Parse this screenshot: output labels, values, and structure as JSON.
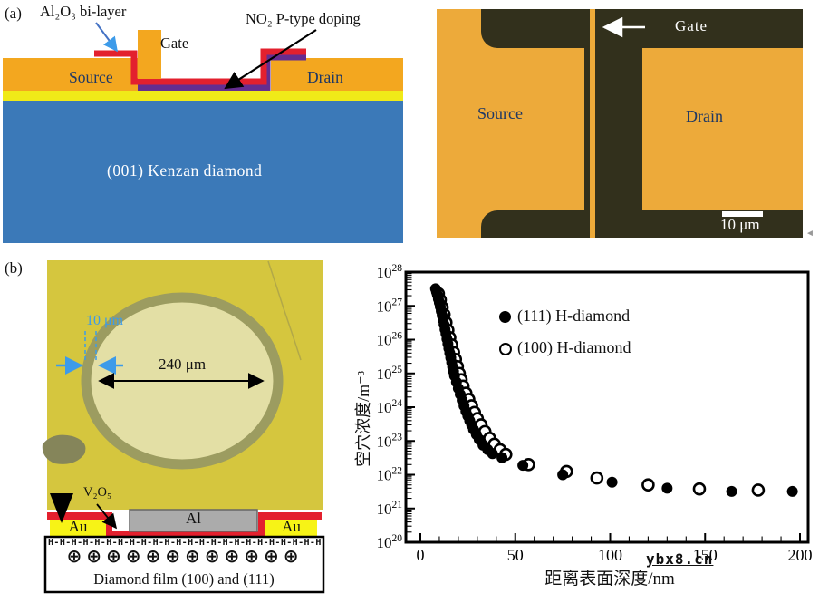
{
  "colors": {
    "metal_orange": "#F3A71F",
    "oxide_red": "#E3202E",
    "oxide_purple": "#652D90",
    "channel_yellow": "#F0EA18",
    "substrate_blue": "#3B79B8",
    "pad_gold": "#EDAA3A",
    "micro_dark": "#32301C",
    "film_yellow": "#D5C63E",
    "ring_gray": "#9C9C60",
    "ring_inner": "#E3DFA5",
    "blob_gray": "#85855A",
    "crack_olive": "#B2A848",
    "au_yellow": "#F7F316",
    "al_gray": "#ABABAB",
    "arrow_blue": "#3D9BE9",
    "label_navy": "#1F3864"
  },
  "panel_a": {
    "label": "(a)",
    "schematic": {
      "al2o3_label": "Al₂O₃ bi-layer",
      "no2_label": "NO₂ P-type doping",
      "gate_label": "Gate",
      "source_label": "Source",
      "drain_label": "Drain",
      "substrate_label": "(001) Kenzan diamond"
    },
    "micrograph": {
      "gate_label": "Gate",
      "source_label": "Source",
      "drain_label": "Drain",
      "scale_bar_label": "10 μm"
    }
  },
  "panel_b": {
    "label": "(b)",
    "micrograph": {
      "ring_width_label": "10 μm",
      "diameter_label": "240 μm"
    },
    "schematic": {
      "v2o5_label": "V₂O₅",
      "al_label": "Al",
      "au_left_label": "Au",
      "au_right_label": "Au",
      "h_layer_row": "H-H-H-H-H-H-H-H-H-H-H-H-H-H-H-H-H-H-H-H-H-H-H-H-H",
      "holes_row": "⊕⊕⊕⊕⊕⊕⊕⊕⊕⊕⊕⊕",
      "caption": "Diamond film (100) and (111)"
    }
  },
  "chart_data": {
    "type": "scatter",
    "xlabel": "距离表面深度/nm",
    "ylabel": "空穴浓度/m⁻³",
    "x_ticks": [
      0,
      50,
      100,
      150,
      200
    ],
    "x_minor_step": 10,
    "xlim": [
      0,
      200
    ],
    "y_log": true,
    "y_tick_exponents": [
      20,
      21,
      22,
      23,
      24,
      25,
      26,
      27,
      28
    ],
    "legend_position": "upper-left-inside",
    "series": [
      {
        "name": "(111) H-diamond",
        "marker": "filled",
        "points": [
          [
            8,
            3.2e+27
          ],
          [
            8.5,
            2.6e+27
          ],
          [
            9,
            2.1e+27
          ],
          [
            9.5,
            1.6e+27
          ],
          [
            10,
            1.25e+27
          ],
          [
            10.5,
            9.5e+26
          ],
          [
            11,
            7e+26
          ],
          [
            11.5,
            5.2e+26
          ],
          [
            12,
            3.8e+26
          ],
          [
            12.5,
            2.8e+26
          ],
          [
            13,
            2e+26
          ],
          [
            13.5,
            1.5e+26
          ],
          [
            14,
            1.05e+26
          ],
          [
            14.5,
            7.5e+25
          ],
          [
            15,
            5.5e+25
          ],
          [
            15.5,
            4e+25
          ],
          [
            16,
            2.9e+25
          ],
          [
            16.5,
            2.1e+25
          ],
          [
            17,
            1.55e+25
          ],
          [
            17.5,
            1.15e+25
          ],
          [
            18,
            8.5e+24
          ],
          [
            19,
            5.5e+24
          ],
          [
            20,
            3.6e+24
          ],
          [
            21,
            2.4e+24
          ],
          [
            22,
            1.6e+24
          ],
          [
            23,
            1.1e+24
          ],
          [
            24,
            7.5e+23
          ],
          [
            25,
            5.5e+23
          ],
          [
            26,
            4e+23
          ],
          [
            27,
            3e+23
          ],
          [
            28,
            2.2e+23
          ],
          [
            29.5,
            1.55e+23
          ],
          [
            31,
            1.1e+23
          ],
          [
            33,
            7.5e+22
          ],
          [
            35.5,
            5.5e+22
          ],
          [
            38,
            4.2e+22
          ],
          [
            43,
            3.2e+22
          ],
          [
            54,
            1.9e+22
          ],
          [
            75,
            1e+22
          ],
          [
            101,
            6e+21
          ],
          [
            130,
            4e+21
          ],
          [
            164,
            3.2e+21
          ],
          [
            196,
            3.2e+21
          ]
        ]
      },
      {
        "name": "(100) H-diamond",
        "marker": "open",
        "points": [
          [
            9.5,
            2.3e+27
          ],
          [
            10.5,
            1.5e+27
          ],
          [
            11.5,
            9e+26
          ],
          [
            12.5,
            5.5e+26
          ],
          [
            13.5,
            3.2e+26
          ],
          [
            14.5,
            1.9e+26
          ],
          [
            15.5,
            1.15e+26
          ],
          [
            16.5,
            7e+25
          ],
          [
            17.5,
            4.2e+25
          ],
          [
            18.5,
            2.6e+25
          ],
          [
            19.5,
            1.6e+25
          ],
          [
            20.5,
            1e+25
          ],
          [
            21.5,
            6.5e+24
          ],
          [
            22.5,
            4.2e+24
          ],
          [
            24,
            2.6e+24
          ],
          [
            25.5,
            1.7e+24
          ],
          [
            27,
            1.1e+24
          ],
          [
            28.5,
            7e+23
          ],
          [
            30,
            4.6e+23
          ],
          [
            32,
            3e+23
          ],
          [
            34,
            1.9e+23
          ],
          [
            36.5,
            1.2e+23
          ],
          [
            39,
            8e+22
          ],
          [
            42,
            5.5e+22
          ],
          [
            45,
            4e+22
          ],
          [
            57,
            2e+22
          ],
          [
            77,
            1.25e+22
          ],
          [
            93,
            8e+21
          ],
          [
            120,
            5e+21
          ],
          [
            147,
            3.8e+21
          ],
          [
            178,
            3.5e+21
          ]
        ]
      }
    ]
  },
  "watermark": "ybx8.cn",
  "page_marker": "◄"
}
